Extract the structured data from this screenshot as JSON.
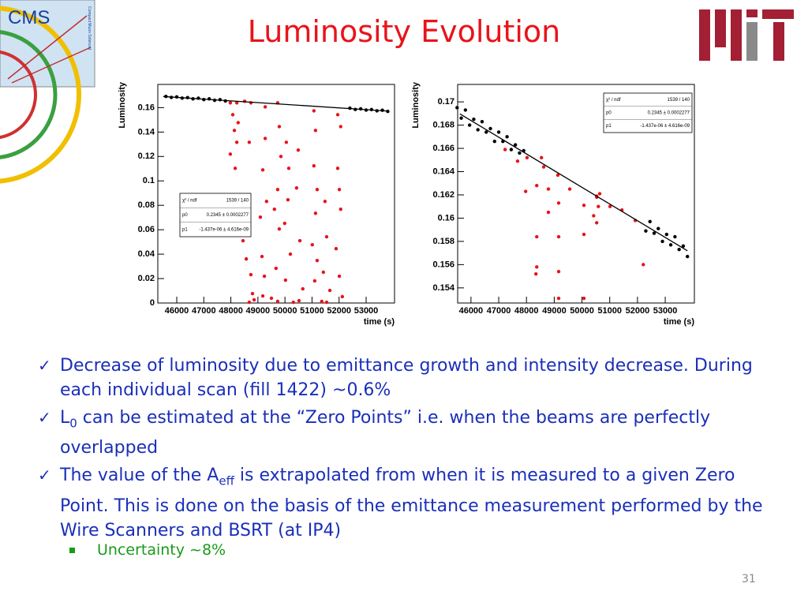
{
  "title": "Luminosity Evolution",
  "logo_text": "CMS",
  "logo_subtext": "Compact Muon Solenoid",
  "bullets": [
    {
      "parts": [
        {
          "t": "Decrease of luminosity due to emittance growth and intensity decrease. During each individual scan (fill 1422) ~0.6%"
        }
      ]
    },
    {
      "parts": [
        {
          "t": "L"
        },
        {
          "t": "0",
          "sub": true
        },
        {
          "t": " can be estimated at the “Zero Points” i.e. when the beams are perfectly overlapped"
        }
      ]
    },
    {
      "parts": [
        {
          "t": "The value of the A"
        },
        {
          "t": "eff",
          "sub": true
        },
        {
          "t": " is extrapolated from when it is measured to a given Zero Point. This is done on the basis of the emittance measurement performed by the Wire Scanners and BSRT (at IP4)"
        }
      ]
    }
  ],
  "sub_bullet": "Uncertainty ~8%",
  "page_number": "31",
  "chart_data": [
    {
      "type": "scatter",
      "xlabel": "time (s)",
      "ylabel": "Luminosity",
      "xlim": [
        45300,
        54050
      ],
      "ylim": [
        0,
        0.179
      ],
      "xticks": [
        46000,
        47000,
        48000,
        49000,
        50000,
        51000,
        52000,
        53000
      ],
      "yticks": [
        0,
        0.02,
        0.04,
        0.06,
        0.08,
        0.1,
        0.12,
        0.14,
        0.16
      ],
      "stats": [
        {
          "label": "χ² / ndf",
          "value": "1539 / 140"
        },
        {
          "label": "p0",
          "value": "0.2345 ± 0.0002277"
        },
        {
          "label": "p1",
          "value": "-1.437e-06 ± 4.616e-09"
        }
      ],
      "fit_line": {
        "color": "#000000",
        "x": [
          45500,
          53800
        ],
        "values": [
          0.16912,
          0.15719
        ]
      },
      "series": [
        {
          "color": "#000000",
          "x": [
            45600,
            45800,
            46000,
            46200,
            46400,
            46600,
            46800,
            47000,
            47200,
            47400,
            47600,
            47800,
            52400,
            52600,
            52800,
            53000,
            53200,
            53400,
            53600,
            53800
          ],
          "values": [
            0.1692,
            0.1684,
            0.1688,
            0.1678,
            0.1682,
            0.1672,
            0.1677,
            0.1666,
            0.1672,
            0.166,
            0.1665,
            0.1655,
            0.1596,
            0.1585,
            0.159,
            0.158,
            0.1584,
            0.1574,
            0.1579,
            0.1569
          ]
        },
        {
          "color": "#e8141a",
          "x": [
            47980,
            48220,
            48070,
            48270,
            48130,
            47980,
            48160,
            48220,
            48510,
            48740,
            48680,
            48450,
            48570,
            48740,
            48800,
            48680,
            48860,
            49270,
            49270,
            49180,
            49320,
            49090,
            49150,
            49240,
            49180,
            49730,
            49790,
            49850,
            49730,
            49610,
            49790,
            49670,
            49500,
            49730,
            50050,
            50140,
            50110,
            49990,
            50200,
            50020,
            50310,
            50490,
            50430,
            50550,
            50660,
            50520,
            51070,
            51130,
            51070,
            51190,
            51130,
            51010,
            51190,
            51100,
            51360,
            51480,
            51540,
            51420,
            51660,
            51540,
            51950,
            52060,
            51950,
            52010,
            52060,
            51890,
            52010,
            52120
          ],
          "values": [
            0.1639,
            0.1639,
            0.1542,
            0.1477,
            0.1413,
            0.1219,
            0.1103,
            0.1316,
            0.1652,
            0.1639,
            0.1316,
            0.051,
            0.0361,
            0.0232,
            0.0077,
            0.0006,
            0.0026,
            0.1606,
            0.1348,
            0.109,
            0.0832,
            0.0703,
            0.0381,
            0.0219,
            0.0058,
            0.1639,
            0.1445,
            0.12,
            0.0929,
            0.0768,
            0.0606,
            0.0284,
            0.0039,
            0.0013,
            0.1316,
            0.1103,
            0.0845,
            0.0652,
            0.04,
            0.0187,
            0.0006,
            0.1252,
            0.0942,
            0.051,
            0.0116,
            0.0019,
            0.1574,
            0.1413,
            0.1123,
            0.0929,
            0.0735,
            0.0477,
            0.0348,
            0.0181,
            0.0013,
            0.0832,
            0.0542,
            0.0252,
            0.0103,
            0.0006,
            0.1542,
            0.1445,
            0.1103,
            0.0929,
            0.0768,
            0.0445,
            0.0219,
            0.0052
          ]
        }
      ]
    },
    {
      "type": "scatter",
      "xlabel": "time (s)",
      "ylabel": "Luminosity",
      "xlim": [
        45520,
        54050
      ],
      "ylim": [
        0.1527,
        0.1715
      ],
      "xticks": [
        46000,
        47000,
        48000,
        49000,
        50000,
        51000,
        52000,
        53000
      ],
      "yticks": [
        0.154,
        0.156,
        0.158,
        0.16,
        0.162,
        0.164,
        0.166,
        0.168,
        0.17
      ],
      "stats": [
        {
          "label": "χ² / ndf",
          "value": "1539 / 140"
        },
        {
          "label": "p0",
          "value": "0.2345 ± 0.0002277"
        },
        {
          "label": "p1",
          "value": "-1.437e-06 ± 4.616e-09"
        }
      ],
      "fit_line": {
        "color": "#000000",
        "x": [
          45600,
          53800
        ],
        "values": [
          0.16897,
          0.15719
        ]
      },
      "series": [
        {
          "color": "#000000",
          "x": [
            45500,
            45650,
            45800,
            45950,
            46100,
            46250,
            46400,
            46550,
            46700,
            46850,
            47000,
            47150,
            47300,
            47450,
            47600,
            47750,
            47900,
            52300,
            52450,
            52600,
            52750,
            52900,
            53050,
            53200,
            53350,
            53500,
            53650,
            53800
          ],
          "values": [
            0.1695,
            0.1686,
            0.1693,
            0.168,
            0.1685,
            0.1676,
            0.1683,
            0.1674,
            0.1677,
            0.1666,
            0.1674,
            0.1666,
            0.167,
            0.1659,
            0.1663,
            0.1656,
            0.1658,
            0.1589,
            0.1597,
            0.1587,
            0.1591,
            0.158,
            0.1586,
            0.1577,
            0.1584,
            0.1573,
            0.1576,
            0.1567
          ]
        },
        {
          "color": "#e8141a",
          "x": [
            47230,
            47680,
            48020,
            48540,
            48620,
            47970,
            48370,
            48790,
            49130,
            49560,
            48790,
            48370,
            48370,
            48340,
            49160,
            49160,
            49160,
            50070,
            50070,
            50070,
            50530,
            50530,
            50640,
            50420,
            50530,
            50590,
            51010,
            51440,
            51920,
            52210,
            49160
          ],
          "values": [
            0.1659,
            0.1649,
            0.1652,
            0.1652,
            0.1644,
            0.1623,
            0.1628,
            0.1625,
            0.1637,
            0.1625,
            0.1605,
            0.1584,
            0.1558,
            0.1552,
            0.1613,
            0.1584,
            0.1554,
            0.1611,
            0.1586,
            0.1531,
            0.1619,
            0.1618,
            0.1621,
            0.1602,
            0.1596,
            0.161,
            0.161,
            0.1607,
            0.1598,
            0.156,
            0.1531
          ]
        }
      ]
    }
  ]
}
